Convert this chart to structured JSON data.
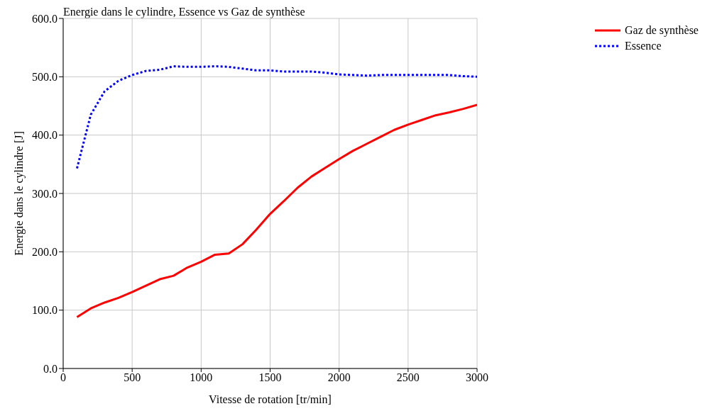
{
  "chart_data": {
    "type": "line",
    "title": "Energie dans le cylindre, Essence vs Gaz de synthèse",
    "xlabel": "Vitesse de rotation [tr/min]",
    "ylabel": "Energie dans le cylindre [J]",
    "x": [
      100,
      200,
      300,
      400,
      500,
      600,
      700,
      800,
      900,
      1000,
      1100,
      1200,
      1300,
      1400,
      1500,
      1600,
      1700,
      1800,
      1900,
      2000,
      2100,
      2200,
      2300,
      2400,
      2500,
      2600,
      2700,
      2800,
      2900,
      3000
    ],
    "series": [
      {
        "name": "Gaz de synthèse",
        "color": "#ff0000",
        "line_style": "solid",
        "values": [
          88,
          103,
          113,
          121,
          131,
          142,
          153,
          159,
          173,
          183,
          195,
          197,
          213,
          238,
          265,
          287,
          310,
          329,
          344,
          359,
          373,
          385,
          397,
          409,
          418,
          426,
          434,
          439,
          445,
          452
        ]
      },
      {
        "name": "Essence",
        "color": "#0000ff",
        "line_style": "dotted",
        "values": [
          343,
          435,
          475,
          493,
          503,
          510,
          512,
          518,
          517,
          517,
          518,
          517,
          514,
          511,
          511,
          509,
          509,
          509,
          507,
          504,
          503,
          502,
          503,
          503,
          503,
          503,
          503,
          503,
          501,
          500
        ]
      }
    ],
    "xlim": [
      0,
      3000
    ],
    "xticks": [
      0,
      500,
      1000,
      1500,
      2000,
      2500,
      3000
    ],
    "ylim": [
      0,
      600
    ],
    "yticks": [
      {
        "value": 0,
        "label": "0.0"
      },
      {
        "value": 100,
        "label": "100.0"
      },
      {
        "value": 200,
        "label": "200.0"
      },
      {
        "value": 300,
        "label": "300.0"
      },
      {
        "value": 400,
        "label": "400.0"
      },
      {
        "value": 500,
        "label": "500.0"
      },
      {
        "value": 600,
        "label": "600.0"
      }
    ],
    "grid": true,
    "legend": "top right",
    "marker": "none"
  }
}
